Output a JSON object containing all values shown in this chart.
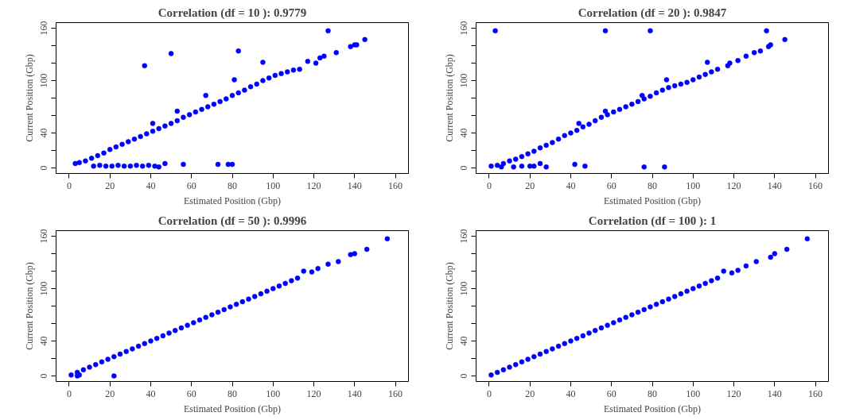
{
  "chart_data": [
    {
      "type": "scatter",
      "title": "Correlation (df = 10 ): 0.9779",
      "xlabel": "Estimated Position (Gbp)",
      "ylabel": "Current Position (Gbp)",
      "marker": "circle",
      "grid": false,
      "xlim": [
        -6.4,
        166.4
      ],
      "ylim": [
        -6.4,
        166.4
      ],
      "xticks": [
        0,
        20,
        40,
        60,
        80,
        100,
        120,
        140,
        160
      ],
      "yticks": [
        0,
        {
          "value": 20,
          "label": null
        },
        40,
        {
          "value": 60,
          "label": null
        },
        {
          "value": 80,
          "label": null
        },
        100,
        {
          "value": 120,
          "label": null
        },
        {
          "value": 140,
          "label": null
        },
        160
      ],
      "series": [
        {
          "color": "#0000ff",
          "x": [
            3,
            5,
            8,
            11,
            14,
            17,
            20,
            23,
            26,
            29,
            32,
            35,
            38,
            41,
            44,
            47,
            50,
            53,
            56,
            59,
            62,
            65,
            68,
            71,
            74,
            77,
            80,
            83,
            86,
            89,
            92,
            95,
            98,
            101,
            104,
            107,
            110,
            113,
            117,
            121,
            123,
            125,
            127,
            131,
            138,
            140,
            141,
            145,
            37,
            50,
            83,
            95,
            81,
            67,
            53,
            41,
            12,
            15,
            18,
            21,
            24,
            27,
            30,
            33,
            36,
            39,
            42,
            44,
            47,
            56,
            73,
            78,
            80
          ],
          "values": [
            5,
            6,
            8,
            11,
            14,
            17,
            21,
            24,
            27,
            30,
            33,
            36,
            39,
            42,
            45,
            48,
            51,
            54,
            58,
            61,
            64,
            67,
            70,
            73,
            76,
            79,
            83,
            86,
            89,
            93,
            96,
            100,
            103,
            106,
            108,
            110,
            112,
            113,
            122,
            120,
            126,
            128,
            157,
            132,
            139,
            141,
            141,
            147,
            117,
            131,
            134,
            121,
            101,
            83,
            65,
            51,
            2,
            3,
            2,
            2,
            3,
            2,
            2,
            3,
            2,
            3,
            2,
            1,
            5,
            4,
            4,
            4,
            4
          ]
        }
      ]
    },
    {
      "type": "scatter",
      "title": "Correlation (df = 20 ): 0.9847",
      "xlabel": "Estimated Position (Gbp)",
      "ylabel": "Current Position (Gbp)",
      "marker": "circle",
      "grid": false,
      "xlim": [
        -6.4,
        166.4
      ],
      "ylim": [
        -6.4,
        166.4
      ],
      "xticks": [
        0,
        20,
        40,
        60,
        80,
        100,
        120,
        140,
        160
      ],
      "yticks": [
        0,
        {
          "value": 20,
          "label": null
        },
        40,
        {
          "value": 60,
          "label": null
        },
        {
          "value": 80,
          "label": null
        },
        100,
        {
          "value": 120,
          "label": null
        },
        {
          "value": 140,
          "label": null
        },
        160
      ],
      "series": [
        {
          "color": "#0000ff",
          "x": [
            1,
            4,
            7,
            10,
            13,
            16,
            19,
            22,
            25,
            28,
            31,
            34,
            37,
            40,
            43,
            46,
            49,
            52,
            55,
            58,
            61,
            64,
            67,
            70,
            73,
            76,
            79,
            82,
            85,
            88,
            91,
            94,
            97,
            100,
            103,
            106,
            109,
            112,
            117,
            118,
            122,
            126,
            130,
            133,
            137,
            138,
            145,
            136,
            3,
            57,
            79,
            107,
            87,
            75,
            57,
            44,
            6,
            12,
            16,
            20,
            22,
            25,
            28,
            42,
            47,
            76,
            86
          ],
          "values": [
            2,
            3,
            5,
            8,
            10,
            13,
            16,
            19,
            23,
            26,
            29,
            33,
            37,
            40,
            43,
            47,
            50,
            54,
            58,
            61,
            64,
            67,
            70,
            73,
            76,
            79,
            82,
            86,
            89,
            92,
            94,
            96,
            98,
            101,
            104,
            107,
            110,
            113,
            117,
            120,
            123,
            128,
            132,
            134,
            139,
            141,
            147,
            157,
            157,
            157,
            157,
            121,
            101,
            83,
            65,
            51,
            1,
            1,
            2,
            2,
            2,
            5,
            1,
            4,
            2,
            1,
            1
          ]
        }
      ]
    },
    {
      "type": "scatter",
      "title": "Correlation (df = 50 ): 0.9996",
      "xlabel": "Estimated Position (Gbp)",
      "ylabel": "Current Position (Gbp)",
      "marker": "circle",
      "grid": false,
      "xlim": [
        -6.4,
        166.4
      ],
      "ylim": [
        -6.4,
        166.4
      ],
      "xticks": [
        0,
        20,
        40,
        60,
        80,
        100,
        120,
        140,
        160
      ],
      "yticks": [
        0,
        {
          "value": 20,
          "label": null
        },
        40,
        {
          "value": 60,
          "label": null
        },
        {
          "value": 80,
          "label": null
        },
        100,
        {
          "value": 120,
          "label": null
        },
        {
          "value": 140,
          "label": null
        },
        160
      ],
      "series": [
        {
          "color": "#0000ff",
          "x": [
            1,
            4,
            7,
            10,
            13,
            16,
            19,
            22,
            25,
            28,
            31,
            34,
            37,
            40,
            43,
            46,
            49,
            52,
            55,
            58,
            61,
            64,
            67,
            70,
            73,
            76,
            79,
            82,
            85,
            88,
            91,
            94,
            97,
            100,
            103,
            106,
            109,
            112,
            115,
            119,
            122,
            127,
            132,
            138,
            140,
            146,
            156,
            22,
            4,
            5
          ],
          "values": [
            1,
            4,
            7,
            10,
            13,
            16,
            19,
            22,
            25,
            28,
            31,
            34,
            37,
            40,
            43,
            46,
            49,
            52,
            55,
            58,
            61,
            64,
            67,
            70,
            73,
            76,
            79,
            82,
            85,
            88,
            91,
            94,
            97,
            100,
            103,
            106,
            109,
            112,
            120,
            119,
            123,
            128,
            131,
            139,
            140,
            145,
            157,
            0,
            0,
            1
          ]
        }
      ]
    },
    {
      "type": "scatter",
      "title": "Correlation (df = 100 ): 1",
      "xlabel": "Estimated Position (Gbp)",
      "ylabel": "Current Position (Gbp)",
      "marker": "circle",
      "grid": false,
      "xlim": [
        -6.4,
        166.4
      ],
      "ylim": [
        -6.4,
        166.4
      ],
      "xticks": [
        0,
        20,
        40,
        60,
        80,
        100,
        120,
        140,
        160
      ],
      "yticks": [
        0,
        {
          "value": 20,
          "label": null
        },
        40,
        {
          "value": 60,
          "label": null
        },
        {
          "value": 80,
          "label": null
        },
        100,
        {
          "value": 120,
          "label": null
        },
        {
          "value": 140,
          "label": null
        },
        160
      ],
      "series": [
        {
          "color": "#0000ff",
          "x": [
            1,
            4,
            7,
            10,
            13,
            16,
            19,
            22,
            25,
            28,
            31,
            34,
            37,
            40,
            43,
            46,
            49,
            52,
            55,
            58,
            61,
            64,
            67,
            70,
            73,
            76,
            79,
            82,
            85,
            88,
            91,
            94,
            97,
            100,
            103,
            106,
            109,
            112,
            115,
            119,
            122,
            126,
            131,
            138,
            140,
            146,
            156
          ],
          "values": [
            1,
            4,
            7,
            10,
            13,
            16,
            19,
            22,
            25,
            28,
            31,
            34,
            37,
            40,
            43,
            46,
            49,
            52,
            55,
            58,
            61,
            64,
            67,
            70,
            73,
            76,
            79,
            82,
            85,
            88,
            91,
            94,
            97,
            100,
            103,
            106,
            109,
            112,
            120,
            118,
            121,
            126,
            131,
            136,
            140,
            145,
            157
          ]
        }
      ]
    }
  ]
}
